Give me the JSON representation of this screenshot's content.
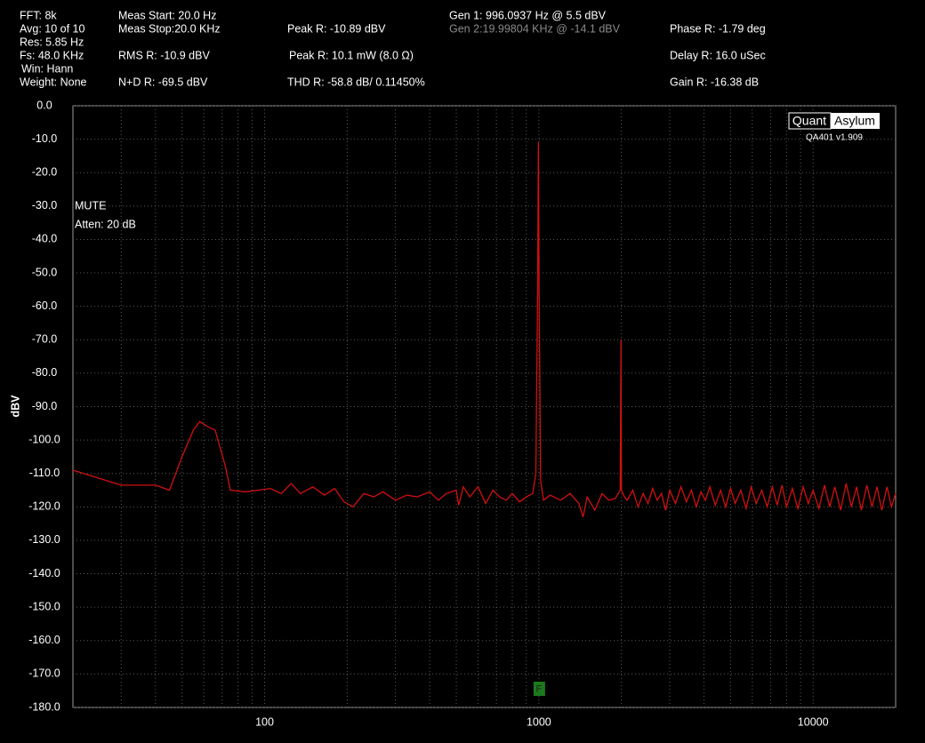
{
  "header": {
    "readouts": [
      "FFT: 8k",
      "Avg: 10 of 10",
      "Res: 5.85 Hz",
      "Fs: 48.0 KHz",
      "Win: Hann",
      "Weight: None",
      "Meas Start: 20.0 Hz",
      "Meas Stop:20.0 KHz",
      "RMS R: -10.9 dBV",
      "N+D R: -69.5 dBV",
      "Peak R: -10.89 dBV",
      "Peak R: 10.1 mW (8.0 Ω)",
      "THD R: -58.8 dB/ 0.11450%",
      "Gen 1: 996.0937 Hz @ 5.5  dBV",
      "Gen 2:19.99804 KHz @ -14.1  dBV",
      "Phase R: -1.79 deg",
      "Delay R: 16.0 uSec",
      "Gain R: -16.38 dB"
    ]
  },
  "logo": {
    "left": "Quant",
    "right": "Asylum",
    "version": "QA401 v1.909"
  },
  "chart_data": {
    "type": "line",
    "ylabel": "dBV",
    "xscale": "log",
    "color": "#d01010",
    "grid": true,
    "annotations": [
      "MUTE",
      "Atten: 20 dB"
    ],
    "markers": [
      {
        "x": 1000,
        "label": "F"
      }
    ],
    "xlim": [
      20,
      20000
    ],
    "xticks": [
      100,
      1000,
      10000
    ],
    "ylim": [
      -180,
      0
    ],
    "yticks": [
      {
        "value": 0,
        "label": "0.0"
      },
      {
        "value": -10,
        "label": "-10.0"
      },
      {
        "value": -20,
        "label": "-20.0"
      },
      {
        "value": -30,
        "label": "-30.0"
      },
      {
        "value": -40,
        "label": "-40.0"
      },
      {
        "value": -50,
        "label": "-50.0"
      },
      {
        "value": -60,
        "label": "-60.0"
      },
      {
        "value": -70,
        "label": "-70.0"
      },
      {
        "value": -80,
        "label": "-80.0"
      },
      {
        "value": -90,
        "label": "-90.0"
      },
      {
        "value": -100,
        "label": "-100.0"
      },
      {
        "value": -110,
        "label": "-110.0"
      },
      {
        "value": -120,
        "label": "-120.0"
      },
      {
        "value": -130,
        "label": "-130.0"
      },
      {
        "value": -140,
        "label": "-140.0"
      },
      {
        "value": -150,
        "label": "-150.0"
      },
      {
        "value": -160,
        "label": "-160.0"
      },
      {
        "value": -170,
        "label": "-170.0"
      },
      {
        "value": -180,
        "label": "-180.0"
      }
    ],
    "x": [
      20,
      30,
      40,
      45,
      50,
      55,
      58,
      62,
      66,
      72,
      75,
      85,
      95,
      105,
      115,
      125,
      135,
      150,
      165,
      180,
      195,
      210,
      230,
      250,
      270,
      300,
      330,
      360,
      400,
      430,
      460,
      500,
      510,
      530,
      560,
      600,
      640,
      680,
      720,
      760,
      800,
      850,
      900,
      950,
      975,
      990,
      996,
      1002,
      1015,
      1040,
      1100,
      1200,
      1300,
      1400,
      1450,
      1500,
      1600,
      1700,
      1800,
      1900,
      1980,
      1993,
      2000,
      2050,
      2100,
      2200,
      2300,
      2400,
      2500,
      2600,
      2700,
      2800,
      2900,
      3000,
      3150,
      3300,
      3450,
      3600,
      3750,
      3900,
      4050,
      4200,
      4400,
      4600,
      4800,
      5000,
      5200,
      5450,
      5700,
      5950,
      6200,
      6500,
      6800,
      7100,
      7400,
      7700,
      8000,
      8400,
      8800,
      9200,
      9600,
      10000,
      10500,
      11000,
      11500,
      12000,
      12600,
      13200,
      13800,
      14400,
      15000,
      15700,
      16400,
      17100,
      17800,
      18600,
      19300,
      20000
    ],
    "values": [
      -109,
      -113.5,
      -113.5,
      -115,
      -105,
      -97,
      -94.5,
      -96,
      -97,
      -108,
      -115,
      -115.5,
      -115,
      -114.5,
      -116,
      -113,
      -116,
      -114,
      -116.5,
      -114.5,
      -118.5,
      -120,
      -116,
      -117,
      -115.5,
      -118,
      -116.5,
      -117,
      -115.5,
      -118,
      -116,
      -115,
      -119.5,
      -114,
      -117,
      -114,
      -119,
      -115,
      -117,
      -118,
      -116,
      -118.5,
      -117,
      -116,
      -110,
      -55,
      -10.9,
      -55,
      -112,
      -118,
      -116.5,
      -118,
      -116,
      -119,
      -123,
      -117,
      -121,
      -116,
      -118,
      -117.5,
      -115,
      -70,
      -115,
      -117,
      -118,
      -115,
      -120,
      -116,
      -119,
      -114.5,
      -118,
      -116,
      -121,
      -115,
      -119,
      -114,
      -118.5,
      -115,
      -120,
      -115.5,
      -118,
      -114,
      -119.5,
      -115,
      -120,
      -114.5,
      -119,
      -115,
      -120.5,
      -114,
      -119,
      -115,
      -120,
      -114,
      -119.5,
      -113.5,
      -120,
      -114.5,
      -120.5,
      -114,
      -119,
      -115,
      -120.5,
      -113.5,
      -120,
      -114,
      -121,
      -113,
      -120,
      -114,
      -121,
      -113.5,
      -120,
      -114,
      -121,
      -114,
      -120,
      -116
    ]
  }
}
